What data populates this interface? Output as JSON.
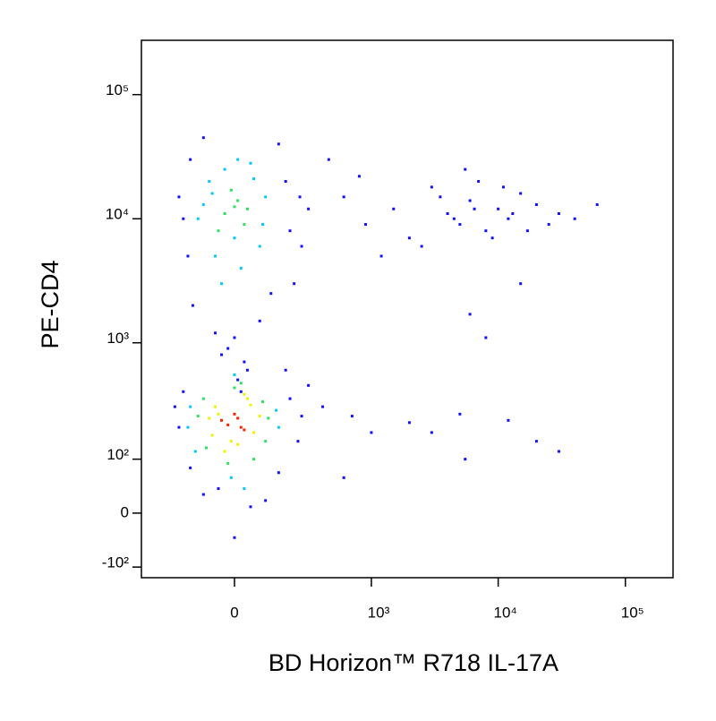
{
  "chart_data": {
    "type": "scatter",
    "x_label": "BD Horizon™ R718  IL-17A",
    "y_label": "PE-CD4",
    "scale": "biexponential",
    "xlim": [
      -440,
      237000
    ],
    "ylim": [
      -128,
      274000
    ],
    "xticks": [
      0,
      {
        "value": 1000,
        "label": "10³"
      },
      {
        "value": 10000,
        "label": "10⁴"
      },
      {
        "value": 100000,
        "label": "10⁵"
      }
    ],
    "yticks": [
      {
        "value": -100,
        "label": "-10²"
      },
      0,
      {
        "value": 100,
        "label": "10²"
      },
      {
        "value": 1000,
        "label": "10³"
      },
      {
        "value": 10000,
        "label": "10⁴"
      },
      {
        "value": 100000,
        "label": "10⁵"
      }
    ],
    "series": [
      {
        "color": "#1010ff",
        "x": [
          -180,
          -150,
          200,
          250,
          300,
          -200,
          -160,
          150,
          220,
          -140,
          120,
          260,
          -100,
          180,
          80,
          -60,
          -20,
          30,
          0,
          40,
          -40,
          10,
          20,
          -200,
          -180,
          200,
          260,
          -150,
          150,
          300,
          -100,
          100,
          50,
          -50,
          0,
          180,
          -220,
          240,
          600,
          900,
          1500,
          2000,
          3000,
          4000,
          5000,
          6000,
          7000,
          8000,
          10000,
          12000,
          15000,
          20000,
          25000,
          30000,
          2500,
          3500,
          4500,
          5500,
          9000,
          11000,
          13000,
          17000,
          800,
          1200,
          6500,
          40000,
          60000,
          450,
          700,
          1000,
          2000,
          3000,
          5000,
          5500,
          12000,
          20000,
          30000,
          400,
          600,
          15000,
          8000,
          6000
        ],
        "values": [
          10000,
          30000,
          8000,
          15000,
          12000,
          15000,
          5000,
          40000,
          3000,
          2000,
          2500,
          6000,
          45000,
          20000,
          1500,
          1200,
          900,
          700,
          1100,
          600,
          800,
          500,
          400,
          200,
          400,
          350,
          250,
          80,
          70,
          450,
          30,
          20,
          10,
          40,
          -40,
          600,
          300,
          150,
          15000,
          9000,
          12000,
          7000,
          18000,
          11000,
          9000,
          14000,
          20000,
          8000,
          12000,
          10000,
          16000,
          13000,
          9000,
          11000,
          6000,
          15000,
          10000,
          25000,
          7000,
          18000,
          11000,
          8000,
          22000,
          5000,
          12000,
          10000,
          13000,
          30000,
          250,
          180,
          220,
          180,
          260,
          100,
          230,
          150,
          120,
          300,
          60,
          3000,
          1100,
          1700
        ]
      },
      {
        "color": "#00c8ff",
        "x": [
          -80,
          60,
          -60,
          80,
          -100,
          20,
          -30,
          50,
          -40,
          90,
          0,
          -120,
          100,
          10,
          -70,
          -150,
          140,
          -130,
          150,
          0,
          -10,
          30,
          -160
        ],
        "values": [
          20000,
          21000,
          5000,
          6000,
          13000,
          4000,
          25000,
          28000,
          3000,
          9000,
          7000,
          10000,
          15000,
          30000,
          16000,
          300,
          280,
          120,
          200,
          550,
          60,
          40,
          200
        ]
      },
      {
        "color": "#30e060",
        "x": [
          -100,
          90,
          -90,
          100,
          0,
          -20,
          60,
          -120,
          110,
          20,
          -30,
          10,
          30,
          -10,
          0,
          -50,
          40
        ],
        "values": [
          350,
          330,
          130,
          150,
          430,
          90,
          100,
          250,
          240,
          470,
          11000,
          14000,
          9000,
          17000,
          12500,
          8000,
          12000
        ]
      },
      {
        "color": "#f0f000",
        "x": [
          -60,
          50,
          -70,
          60,
          -10,
          40,
          -50,
          10,
          80,
          -80,
          30,
          -30
        ],
        "values": [
          300,
          310,
          170,
          180,
          150,
          350,
          260,
          140,
          250,
          240,
          380,
          120
        ]
      },
      {
        "color": "#ff2000",
        "x": [
          -20,
          10,
          30,
          -40,
          0,
          20
        ],
        "values": [
          210,
          240,
          190,
          230,
          260,
          200
        ]
      }
    ]
  }
}
